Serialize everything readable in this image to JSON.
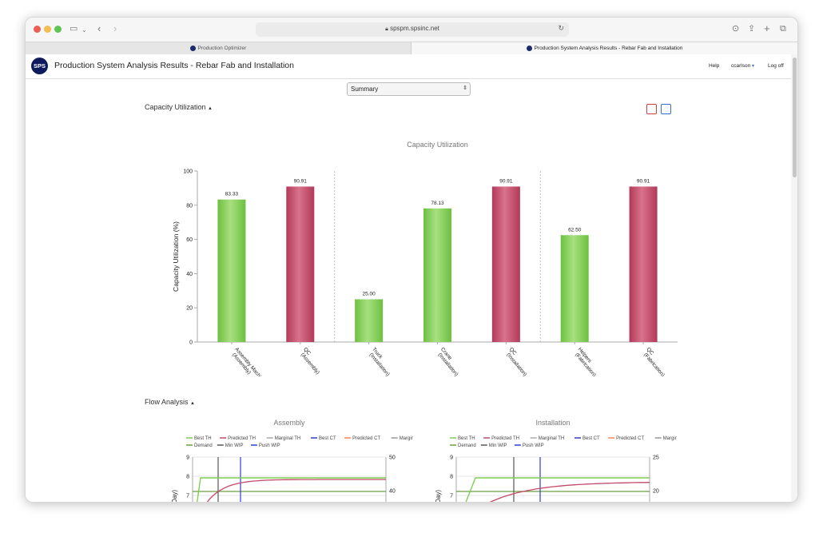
{
  "browser": {
    "url": "spspm.spsinc.net",
    "tabs": [
      {
        "label": "Production Optimizer",
        "active": false
      },
      {
        "label": "Production System Analysis Results - Rebar Fab and Installation",
        "active": true
      }
    ]
  },
  "app": {
    "logo_text": "SPS",
    "title": "Production System Analysis Results - Rebar Fab and Installation",
    "nav": {
      "help": "Help",
      "user": "ccarlson",
      "logoff": "Log off"
    }
  },
  "view_select": {
    "value": "Summary"
  },
  "sections": {
    "capacity": "Capacity Utilization",
    "flow": "Flow Analysis"
  },
  "colors": {
    "green": "#7fcf52",
    "red": "#c24a68",
    "accent": "#0d1a5c"
  },
  "chart_data": [
    {
      "type": "bar",
      "title": "Capacity Utilization",
      "ylabel": "Capacity Utilization (%)",
      "ylim": [
        0,
        100
      ],
      "yticks": [
        "0",
        "20",
        "40",
        "60",
        "80",
        "100"
      ],
      "categories": [
        {
          "line1": "Assembly Machine",
          "line2": "(Assembly)"
        },
        {
          "line1": "QC",
          "line2": "(Assembly)"
        },
        {
          "line1": "Truck",
          "line2": "(Installation)"
        },
        {
          "line1": "Crane",
          "line2": "(Installation)"
        },
        {
          "line1": "QC",
          "line2": "(Installation)"
        },
        {
          "line1": "Helpers",
          "line2": "(Fabrication)"
        },
        {
          "line1": "QC",
          "line2": "(Fabrication)"
        }
      ],
      "values": [
        83.33,
        90.91,
        25.0,
        78.13,
        90.91,
        62.5,
        90.91
      ],
      "labels": [
        "83.33",
        "90.91",
        "25.00",
        "78.13",
        "90.91",
        "62.50",
        "90.91"
      ],
      "bar_colors": [
        "green",
        "red",
        "green",
        "green",
        "red",
        "green",
        "red"
      ],
      "group_dividers_after": [
        1,
        4
      ],
      "grid": false
    },
    {
      "type": "line",
      "title": "Assembly",
      "ylabel": "ges/Day)",
      "y2label": "s)",
      "yticks": [
        "9",
        "8",
        "7",
        "6"
      ],
      "y2ticks": [
        "50",
        "40"
      ],
      "legend": [
        [
          {
            "name": "Best TH",
            "color": "#7fcf52"
          },
          {
            "name": "Predicted TH",
            "color": "#c24a68"
          },
          {
            "name": "Marginal TH",
            "color": "#aaaaaa"
          },
          {
            "name": "Best CT",
            "color": "#2b3fd0"
          },
          {
            "name": "Predicted CT",
            "color": "#ff7f50"
          },
          {
            "name": "Marginal CT",
            "color": "#999999"
          }
        ],
        [
          {
            "name": "Demand",
            "color": "#6c9d3c"
          },
          {
            "name": "Min WIP",
            "color": "#555555"
          },
          {
            "name": "Push WIP",
            "color": "#2b3fd0"
          }
        ]
      ]
    },
    {
      "type": "line",
      "title": "Installation",
      "ylabel": "ges/Day)",
      "y2label": "s)",
      "yticks": [
        "9",
        "8",
        "7",
        "6"
      ],
      "y2ticks": [
        "25",
        "20"
      ],
      "legend": [
        [
          {
            "name": "Best TH",
            "color": "#7fcf52"
          },
          {
            "name": "Predicted TH",
            "color": "#c24a68"
          },
          {
            "name": "Marginal TH",
            "color": "#aaaaaa"
          },
          {
            "name": "Best CT",
            "color": "#2b3fd0"
          },
          {
            "name": "Predicted CT",
            "color": "#ff7f50"
          },
          {
            "name": "Marginal CT",
            "color": "#999999"
          }
        ],
        [
          {
            "name": "Demand",
            "color": "#6c9d3c"
          },
          {
            "name": "Min WIP",
            "color": "#555555"
          },
          {
            "name": "Push WIP",
            "color": "#2b3fd0"
          }
        ]
      ]
    }
  ]
}
